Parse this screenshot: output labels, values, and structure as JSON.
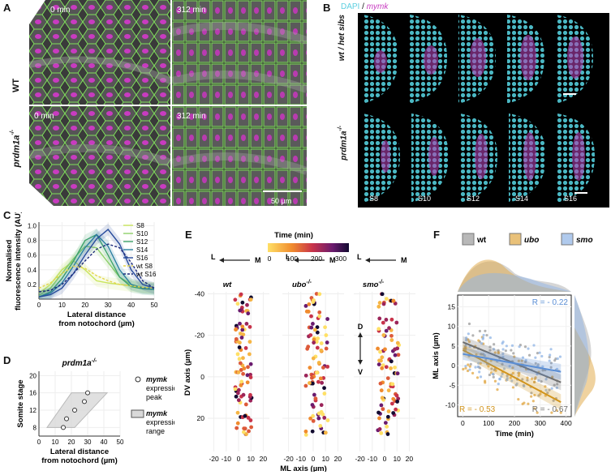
{
  "panelA": {
    "label": "A",
    "rows": [
      {
        "name": "WT",
        "t0": "0 min",
        "t1": "312 min"
      },
      {
        "name": "prdm1a",
        "sup": "-/-",
        "t0": "0 min",
        "t1": "312 min"
      }
    ],
    "scalebar": "50 µm"
  },
  "panelB": {
    "label": "B",
    "legend_dapi": "DAPI",
    "legend_sep": " / ",
    "legend_mymk": "mymk",
    "row1": "wt / het sibs",
    "row2": "prdm1a",
    "row2_sup": "-/-",
    "stages": [
      "S8",
      "S10",
      "S12",
      "S14",
      "S16"
    ]
  },
  "panelC": {
    "label": "C",
    "chart_data": {
      "type": "line",
      "xlabel": "Lateral distance from notochord (µm)",
      "ylabel": "Normalised fluorescence intensity (AU)",
      "xlim": [
        0,
        50
      ],
      "ylim": [
        0,
        1.05
      ],
      "xticks": [
        0,
        10,
        20,
        30,
        40,
        50
      ],
      "yticks": [
        0.2,
        0.4,
        0.6,
        0.8,
        1.0
      ],
      "series": [
        {
          "name": "S8",
          "color": "#c9e55c",
          "dash": false,
          "x": [
            0,
            5,
            10,
            15,
            20,
            25,
            30,
            35,
            40,
            45,
            50
          ],
          "y": [
            0.08,
            0.2,
            0.4,
            0.52,
            0.4,
            0.25,
            0.22,
            0.2,
            0.18,
            0.16,
            0.15
          ]
        },
        {
          "name": "S10",
          "color": "#8ed06a",
          "dash": false,
          "x": [
            0,
            5,
            10,
            15,
            20,
            25,
            30,
            35,
            40,
            45,
            50
          ],
          "y": [
            0.05,
            0.15,
            0.35,
            0.55,
            0.72,
            0.7,
            0.5,
            0.3,
            0.2,
            0.16,
            0.15
          ]
        },
        {
          "name": "S12",
          "color": "#3ea36a",
          "dash": false,
          "x": [
            0,
            5,
            10,
            15,
            20,
            25,
            30,
            35,
            40,
            45,
            50
          ],
          "y": [
            0.03,
            0.1,
            0.28,
            0.52,
            0.8,
            0.88,
            0.6,
            0.3,
            0.17,
            0.14,
            0.13
          ]
        },
        {
          "name": "S14",
          "color": "#2a7fa0",
          "dash": false,
          "x": [
            0,
            5,
            10,
            15,
            20,
            25,
            30,
            35,
            40,
            45,
            50
          ],
          "y": [
            0.03,
            0.08,
            0.22,
            0.45,
            0.7,
            0.88,
            0.72,
            0.4,
            0.2,
            0.15,
            0.14
          ]
        },
        {
          "name": "S16",
          "color": "#274b9c",
          "dash": false,
          "x": [
            0,
            5,
            10,
            15,
            20,
            25,
            30,
            35,
            40,
            45,
            50
          ],
          "y": [
            0.03,
            0.06,
            0.15,
            0.35,
            0.6,
            0.82,
            0.95,
            0.75,
            0.4,
            0.2,
            0.15
          ]
        },
        {
          "name": "wt S8",
          "color": "#e6d44a",
          "dash": true,
          "x": [
            0,
            5,
            10,
            15,
            20,
            25,
            30,
            35,
            40,
            45,
            50
          ],
          "y": [
            0.15,
            0.22,
            0.35,
            0.45,
            0.42,
            0.32,
            0.25,
            0.2,
            0.18,
            0.16,
            0.15
          ]
        },
        {
          "name": "wt S16",
          "color": "#1c2a7a",
          "dash": true,
          "x": [
            0,
            5,
            10,
            15,
            20,
            25,
            30,
            35,
            40,
            45,
            50
          ],
          "y": [
            0.1,
            0.12,
            0.2,
            0.35,
            0.52,
            0.68,
            0.75,
            0.7,
            0.5,
            0.25,
            0.15
          ]
        }
      ]
    }
  },
  "panelD": {
    "label": "D",
    "title": "prdm1a",
    "title_sup": "-/-",
    "chart_data": {
      "type": "scatter",
      "xlabel": "Lateral distance from  notochord (µm)",
      "ylabel": "Somite stage",
      "xlim": [
        0,
        50
      ],
      "ylim": [
        6,
        21
      ],
      "xticks": [
        0,
        10,
        20,
        30,
        40,
        50
      ],
      "yticks": [
        8,
        12,
        16,
        20
      ],
      "peaks": [
        {
          "stage": 8,
          "x": 15
        },
        {
          "stage": 10,
          "x": 17
        },
        {
          "stage": 12,
          "x": 22
        },
        {
          "stage": 14,
          "x": 28
        },
        {
          "stage": 16,
          "x": 30
        }
      ],
      "range_low": [
        {
          "stage": 8,
          "x": 5
        },
        {
          "stage": 16,
          "x": 20
        }
      ],
      "range_high": [
        {
          "stage": 8,
          "x": 22
        },
        {
          "stage": 16,
          "x": 42
        }
      ]
    },
    "legend_peak": [
      "mymk",
      "expression",
      "peak"
    ],
    "legend_range": [
      "mymk",
      "expression",
      "range"
    ]
  },
  "panelE": {
    "label": "E",
    "colorbar_title": "Time (min)",
    "colorbar_ticks": [
      "0",
      "100",
      "200",
      "300"
    ],
    "arrowL": "L",
    "arrowM": "M",
    "ylabel": "DV axis (µm)",
    "xlabel": "ML axis (µm)",
    "facets": [
      {
        "name": "wt",
        "sup": ""
      },
      {
        "name": "ubo",
        "sup": "-/-"
      },
      {
        "name": "smo",
        "sup": "-/-"
      }
    ],
    "xticks": [
      -20,
      -10,
      0,
      10,
      20
    ],
    "yticks": [
      -40,
      -20,
      0,
      20
    ],
    "dv_D": "D",
    "dv_V": "V"
  },
  "panelF": {
    "label": "F",
    "legend": [
      {
        "name": "wt",
        "color": "#9a9a9a"
      },
      {
        "name": "ubo",
        "color": "#e0a640"
      },
      {
        "name": "smo",
        "color": "#8fb4e6"
      }
    ],
    "ylabel": "ML axis (µm)",
    "xlabel": "Time (min)",
    "xticks": [
      0,
      100,
      200,
      300,
      400
    ],
    "yticks": [
      -10,
      -5,
      0,
      5,
      10,
      15
    ],
    "r_smo": "R = - 0.22",
    "r_ubo": "R = - 0.53",
    "r_wt": "R = - 0.67",
    "colors": {
      "wt": "#6e6e6e",
      "ubo": "#d1941c",
      "smo": "#5b8fd6"
    }
  }
}
